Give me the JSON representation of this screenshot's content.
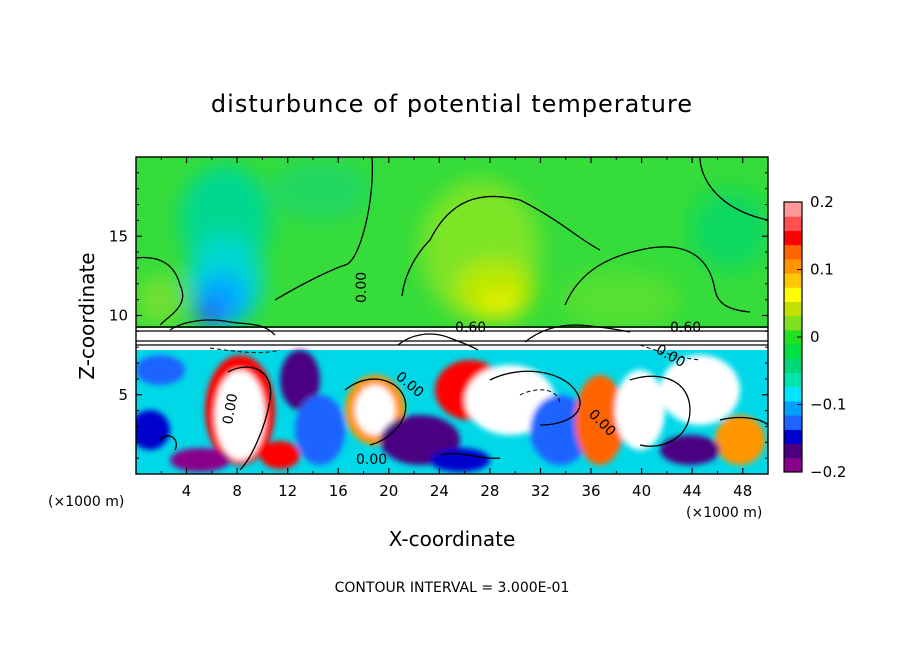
{
  "chart_data": {
    "type": "heatmap",
    "title": "disturbunce of potential temperature",
    "xlabel": "X-coordinate",
    "ylabel": "Z-coordinate",
    "x_ticks": [
      "4",
      "8",
      "12",
      "16",
      "20",
      "24",
      "28",
      "32",
      "36",
      "40",
      "44",
      "48"
    ],
    "y_ticks": [
      "5",
      "10",
      "15"
    ],
    "x_unit_left": "(×1000 m)",
    "x_unit_right": "(×1000 m)",
    "xlim": [
      0,
      50
    ],
    "ylim": [
      0,
      20
    ],
    "colorbar": {
      "range": [
        -0.2,
        0.2
      ],
      "tick_labels": [
        "0.2",
        "0.1",
        "0",
        "−0.1",
        "−0.2"
      ],
      "colors": [
        "#8b008b",
        "#4b0082",
        "#0000cd",
        "#1e64ff",
        "#00a0ff",
        "#00e5ff",
        "#00e5b0",
        "#00d878",
        "#00e040",
        "#20e020",
        "#7fe020",
        "#c0e000",
        "#ffff00",
        "#ffc800",
        "#ff9600",
        "#ff6400",
        "#ff0000",
        "#ff5050",
        "#ff9999"
      ]
    },
    "contour_labels": [
      "0.00",
      "0.60",
      "0.60",
      "0.00",
      "0.00",
      "0.00",
      "0.00",
      "0.00"
    ],
    "footnote": "CONTOUR INTERVAL = 3.000E-01"
  }
}
